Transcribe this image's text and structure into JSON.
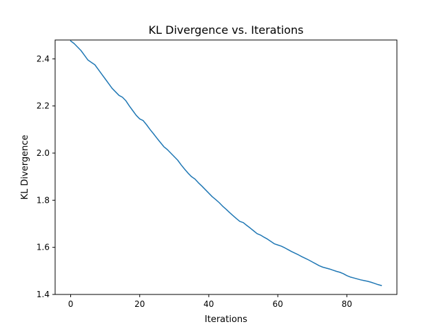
{
  "chart_data": {
    "type": "line",
    "title": "KL Divergence vs. Iterations",
    "xlabel": "Iterations",
    "ylabel": "KL Divergence",
    "xlim": [
      -4.5,
      94.5
    ],
    "ylim": [
      1.4,
      2.48
    ],
    "xticks": [
      0,
      20,
      40,
      60,
      80
    ],
    "yticks": [
      1.4,
      1.6,
      1.8,
      2.0,
      2.2,
      2.4
    ],
    "ytick_labels": [
      "1.4",
      "1.6",
      "1.8",
      "2.0",
      "2.2",
      "2.4"
    ],
    "grid": false,
    "series": [
      {
        "color": "#1f77b4",
        "x": [
          0,
          1,
          2,
          3,
          4,
          5,
          6,
          7,
          8,
          9,
          10,
          11,
          12,
          13,
          14,
          15,
          16,
          17,
          18,
          19,
          20,
          21,
          22,
          23,
          24,
          25,
          26,
          27,
          28,
          29,
          30,
          31,
          32,
          33,
          34,
          35,
          36,
          37,
          38,
          39,
          40,
          41,
          42,
          43,
          44,
          45,
          46,
          47,
          48,
          49,
          50,
          51,
          52,
          53,
          54,
          55,
          56,
          57,
          58,
          59,
          60,
          61,
          62,
          63,
          64,
          65,
          66,
          67,
          68,
          69,
          70,
          71,
          72,
          73,
          74,
          75,
          76,
          77,
          78,
          79,
          80,
          81,
          82,
          83,
          84,
          85,
          86,
          87,
          88,
          89,
          90
        ],
        "y": [
          2.476,
          2.465,
          2.45,
          2.435,
          2.415,
          2.395,
          2.385,
          2.375,
          2.355,
          2.335,
          2.315,
          2.295,
          2.275,
          2.26,
          2.245,
          2.237,
          2.222,
          2.2,
          2.18,
          2.16,
          2.145,
          2.138,
          2.12,
          2.1,
          2.082,
          2.063,
          2.045,
          2.027,
          2.015,
          2.0,
          1.985,
          1.97,
          1.95,
          1.932,
          1.915,
          1.9,
          1.89,
          1.874,
          1.86,
          1.845,
          1.83,
          1.815,
          1.803,
          1.79,
          1.775,
          1.762,
          1.748,
          1.735,
          1.722,
          1.71,
          1.705,
          1.693,
          1.682,
          1.67,
          1.658,
          1.652,
          1.643,
          1.635,
          1.625,
          1.615,
          1.61,
          1.605,
          1.598,
          1.59,
          1.582,
          1.575,
          1.568,
          1.56,
          1.553,
          1.546,
          1.538,
          1.53,
          1.522,
          1.516,
          1.512,
          1.508,
          1.503,
          1.498,
          1.494,
          1.488,
          1.48,
          1.474,
          1.47,
          1.466,
          1.462,
          1.459,
          1.456,
          1.452,
          1.447,
          1.442,
          1.438
        ]
      }
    ]
  }
}
